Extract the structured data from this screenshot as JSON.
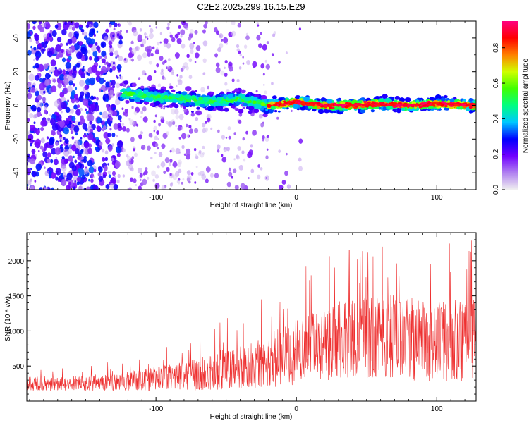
{
  "chart_data": [
    {
      "type": "heatmap",
      "title": "C2E2.2025.299.16.15.E29",
      "xlabel": "Height of straight line (km)",
      "ylabel": "Frequency (Hz)",
      "xlim": [
        -192,
        128
      ],
      "ylim": [
        -50,
        50
      ],
      "xticks": [
        -100,
        0,
        100
      ],
      "yticks": [
        -40,
        -20,
        0,
        20,
        40
      ],
      "colorbar": {
        "label": "Normalized spectral amplitude",
        "range": [
          0,
          0.95
        ],
        "ticks": [
          0.0,
          0.2,
          0.4,
          0.6,
          0.8
        ],
        "colors": [
          "#f0f0f0",
          "#b080f0",
          "#7000ff",
          "#0000ff",
          "#00c8ff",
          "#00ff80",
          "#40ff00",
          "#d0ff00",
          "#ff8000",
          "#ff0000",
          "#ff0080"
        ]
      },
      "ridge": {
        "description_points_x": [
          -120,
          -100,
          -80,
          -60,
          -40,
          -20,
          0,
          20,
          40,
          60,
          80,
          100,
          128
        ],
        "frequency_hz": [
          7,
          5,
          4,
          2,
          4,
          0,
          2,
          0,
          0,
          1,
          0,
          1,
          0
        ]
      }
    },
    {
      "type": "line",
      "xlabel": "Height of straight line (km)",
      "ylabel": "SNR (10 * v/v)",
      "xlim": [
        -192,
        128
      ],
      "ylim": [
        0,
        2400
      ],
      "xticks": [
        -100,
        0,
        100
      ],
      "yticks": [
        500,
        1000,
        1500,
        2000
      ],
      "series": [
        {
          "name": "SNR",
          "color": "#ee3030",
          "x": [
            -192,
            -170,
            -150,
            -130,
            -110,
            -90,
            -70,
            -60,
            -50,
            -40,
            -30,
            -20,
            -10,
            0,
            10,
            20,
            30,
            40,
            50,
            60,
            70,
            80,
            90,
            100,
            110,
            120,
            128
          ],
          "center": [
            250,
            250,
            260,
            270,
            300,
            330,
            380,
            420,
            470,
            500,
            540,
            590,
            640,
            690,
            760,
            820,
            860,
            900,
            920,
            940,
            920,
            900,
            880,
            860,
            850,
            860,
            870
          ],
          "spread": [
            150,
            150,
            160,
            170,
            220,
            270,
            330,
            380,
            420,
            460,
            500,
            560,
            620,
            680,
            720,
            760,
            800,
            820,
            840,
            860,
            860,
            860,
            860,
            850,
            840,
            840,
            850
          ]
        }
      ]
    }
  ]
}
